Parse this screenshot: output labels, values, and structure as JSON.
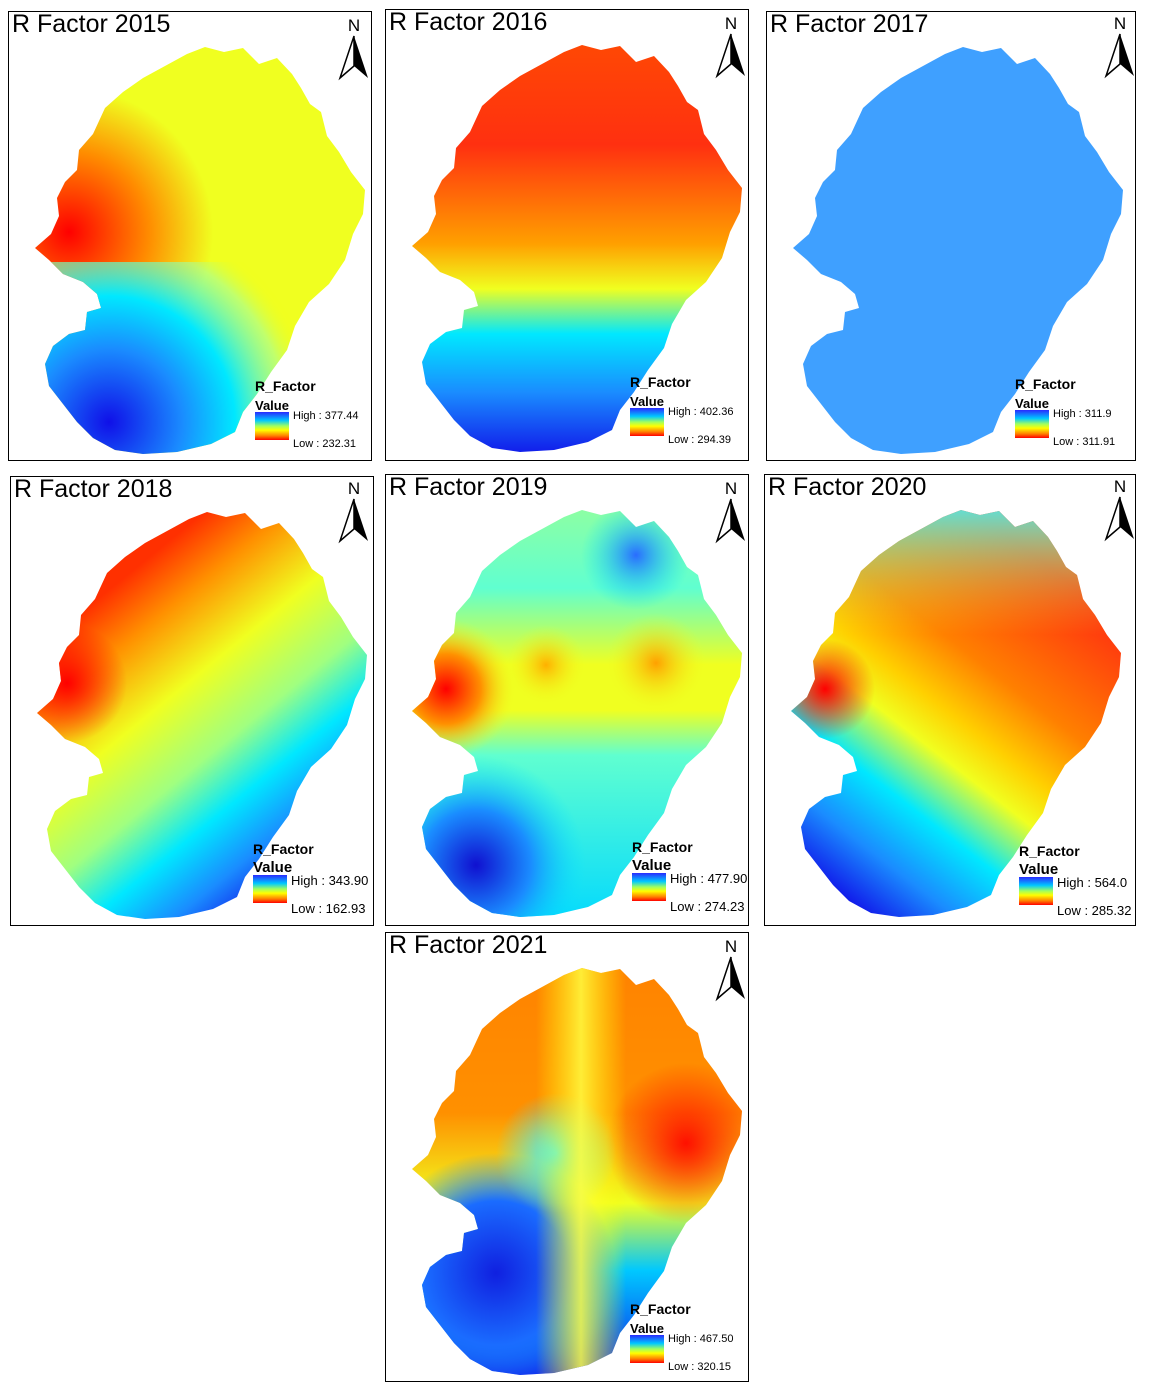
{
  "panels": [
    {
      "title": "R Factor 2015",
      "legend_title": "R_Factor",
      "legend_sub": "Value",
      "high": "High : 377.44",
      "low": "Low : 232.31",
      "north": "N"
    },
    {
      "title": "R Factor 2016",
      "legend_title": "R_Factor",
      "legend_sub": "Value",
      "high": "High : 402.36",
      "low": "Low : 294.39",
      "north": "N"
    },
    {
      "title": "R Factor 2017",
      "legend_title": "R_Factor",
      "legend_sub": "Value",
      "high": "High : 311.9",
      "low": "Low : 311.91",
      "north": "N"
    },
    {
      "title": "R Factor 2018",
      "legend_title": "R_Factor",
      "legend_sub": "Value",
      "high": "High : 343.90",
      "low": "Low : 162.93",
      "north": "N"
    },
    {
      "title": "R Factor 2019",
      "legend_title": "R_Factor",
      "legend_sub": "Value",
      "high": "High : 477.90",
      "low": "Low : 274.23",
      "north": "N"
    },
    {
      "title": "R Factor 2020",
      "legend_title": "R_Factor",
      "legend_sub": "Value",
      "high": "High : 564.0",
      "low": "Low : 285.32",
      "north": "N"
    },
    {
      "title": "R Factor 2021",
      "legend_title": "R_Factor",
      "legend_sub": "Value",
      "high": "High : 467.50",
      "low": "Low : 320.15",
      "north": "N"
    }
  ],
  "colors": {
    "ramp_high": "#2a2aff",
    "ramp_mid": "#ffff00",
    "ramp_low": "#ff0000",
    "uniform_2017": "#3fa0ff"
  }
}
